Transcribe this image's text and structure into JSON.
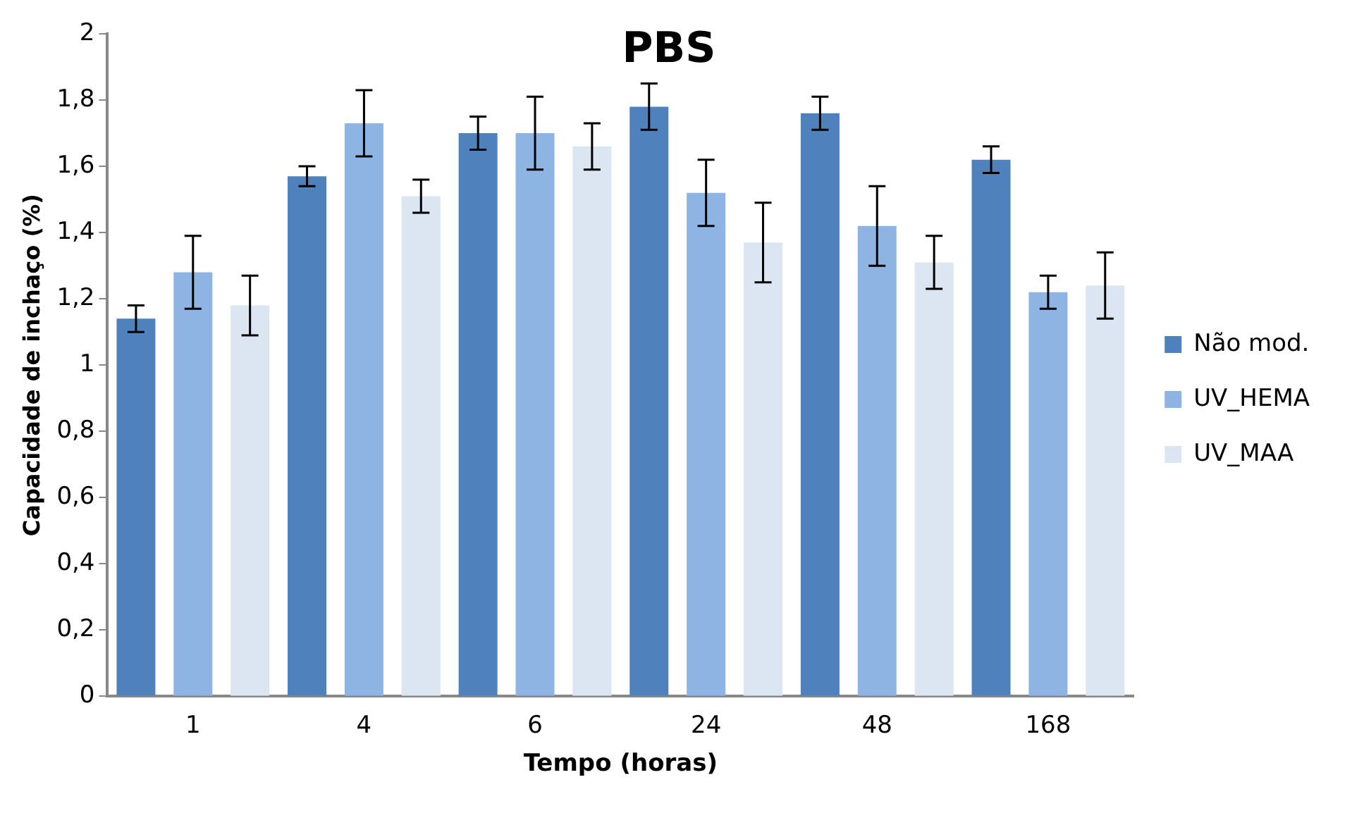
{
  "chart_data": {
    "type": "bar",
    "title": "PBS",
    "xlabel": "Tempo (horas)",
    "ylabel": "Capacidade de inchaço (%)",
    "categories": [
      "1",
      "4",
      "6",
      "24",
      "48",
      "168"
    ],
    "series": [
      {
        "name": "Não mod.",
        "color": "#4f81bd",
        "values": [
          1.14,
          1.57,
          1.7,
          1.78,
          1.76,
          1.62
        ],
        "errors": [
          0.04,
          0.03,
          0.05,
          0.07,
          0.05,
          0.04
        ]
      },
      {
        "name": "UV_HEMA",
        "color": "#8eb4e3",
        "values": [
          1.28,
          1.73,
          1.7,
          1.52,
          1.42,
          1.22
        ],
        "errors": [
          0.11,
          0.1,
          0.11,
          0.1,
          0.12,
          0.05
        ]
      },
      {
        "name": "UV_MAA",
        "color": "#dce6f2",
        "values": [
          1.18,
          1.51,
          1.66,
          1.37,
          1.31,
          1.24
        ],
        "errors": [
          0.09,
          0.05,
          0.07,
          0.12,
          0.08,
          0.1
        ]
      }
    ],
    "ylim": [
      0,
      2
    ],
    "yticks": [
      0,
      {
        "value": 0.2,
        "label": "0,2"
      },
      {
        "value": 0.4,
        "label": "0,4"
      },
      {
        "value": 0.6,
        "label": "0,6"
      },
      {
        "value": 0.8,
        "label": "0,8"
      },
      1,
      {
        "value": 1.2,
        "label": "1,2"
      },
      {
        "value": 1.4,
        "label": "1,4"
      },
      {
        "value": 1.6,
        "label": "1,6"
      },
      {
        "value": 1.8,
        "label": "1,8"
      },
      2
    ],
    "grid": false,
    "legend": "right"
  }
}
